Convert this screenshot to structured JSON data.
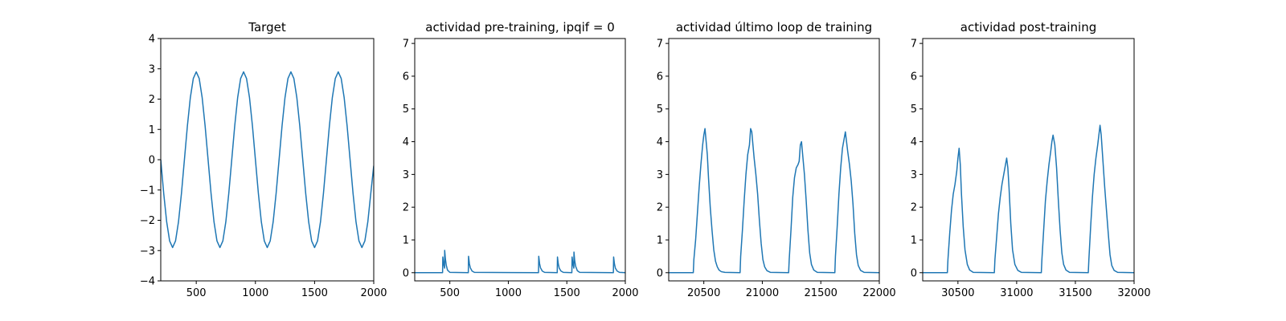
{
  "chart_data": [
    {
      "type": "line",
      "title": "Target",
      "xlabel": "",
      "ylabel": "",
      "xlim": [
        200,
        2000
      ],
      "ylim": [
        -4,
        4
      ],
      "xticks": [
        500,
        1000,
        1500,
        2000
      ],
      "xtick_labels": [
        "500",
        "1000",
        "1500",
        "2000"
      ],
      "yticks": [
        -4,
        -3,
        -2,
        -1,
        0,
        1,
        2,
        3,
        4
      ],
      "ytick_labels": [
        "−4",
        "−3",
        "−2",
        "−1",
        "0",
        "1",
        "2",
        "3",
        "4"
      ],
      "grid": false,
      "color": "#1f77b4",
      "series": [
        {
          "x": [
            200,
            225,
            250,
            275,
            300,
            325,
            350,
            375,
            400,
            425,
            450,
            475,
            500,
            525,
            550,
            575,
            600,
            625,
            650,
            675,
            700,
            725,
            750,
            775,
            800,
            825,
            850,
            875,
            900,
            925,
            950,
            975,
            1000,
            1025,
            1050,
            1075,
            1100,
            1125,
            1150,
            1175,
            1200,
            1225,
            1250,
            1275,
            1300,
            1325,
            1350,
            1375,
            1400,
            1425,
            1450,
            1475,
            1500,
            1525,
            1550,
            1575,
            1600,
            1625,
            1650,
            1675,
            1700,
            1725,
            1750,
            1775,
            1800,
            1825,
            1850,
            1875,
            1900,
            1925,
            1950,
            1975,
            2000
          ],
          "y": [
            0.0,
            -1.11,
            -2.05,
            -2.68,
            -2.9,
            -2.68,
            -2.05,
            -1.11,
            0.0,
            1.11,
            2.05,
            2.68,
            2.9,
            2.68,
            2.05,
            1.11,
            0.0,
            -1.11,
            -2.05,
            -2.68,
            -2.9,
            -2.68,
            -2.05,
            -1.11,
            0.0,
            1.11,
            2.05,
            2.68,
            2.9,
            2.68,
            2.05,
            1.11,
            0.0,
            -1.11,
            -2.05,
            -2.68,
            -2.9,
            -2.68,
            -2.05,
            -1.11,
            0.0,
            1.11,
            2.05,
            2.68,
            2.9,
            2.68,
            2.05,
            1.11,
            0.0,
            -1.11,
            -2.05,
            -2.68,
            -2.9,
            -2.68,
            -2.05,
            -1.11,
            0.0,
            1.11,
            2.05,
            2.68,
            2.9,
            2.68,
            2.05,
            1.11,
            0.0,
            -1.11,
            -2.05,
            -2.68,
            -2.9,
            -2.68,
            -2.05,
            -1.11,
            -0.2
          ]
        }
      ]
    },
    {
      "type": "line",
      "title": "actividad pre-training, ipqif = 0",
      "xlabel": "",
      "ylabel": "",
      "xlim": [
        200,
        2000
      ],
      "ylim": [
        -0.25,
        7.15
      ],
      "xticks": [
        500,
        1000,
        1500,
        2000
      ],
      "xtick_labels": [
        "500",
        "1000",
        "1500",
        "2000"
      ],
      "yticks": [
        0,
        1,
        2,
        3,
        4,
        5,
        6,
        7
      ],
      "ytick_labels": [
        "0",
        "1",
        "2",
        "3",
        "4",
        "5",
        "6",
        "7"
      ],
      "grid": false,
      "color": "#1f77b4",
      "series": [
        {
          "x": [
            200,
            438,
            440,
            447,
            455,
            456,
            462,
            470,
            480,
            500,
            658,
            660,
            667,
            675,
            690,
            710,
            1258,
            1260,
            1267,
            1275,
            1290,
            1310,
            1418,
            1420,
            1427,
            1435,
            1450,
            1470,
            1543,
            1545,
            1552,
            1560,
            1561,
            1567,
            1575,
            1590,
            1610,
            1898,
            1900,
            1907,
            1915,
            1930,
            1950,
            2000
          ],
          "y": [
            0,
            0,
            0.48,
            0.27,
            0.14,
            0.68,
            0.42,
            0.22,
            0.08,
            0.01,
            0,
            0.5,
            0.28,
            0.15,
            0.05,
            0.01,
            0,
            0.5,
            0.28,
            0.15,
            0.05,
            0.01,
            0,
            0.48,
            0.27,
            0.14,
            0.05,
            0.01,
            0,
            0.48,
            0.27,
            0.14,
            0.63,
            0.38,
            0.2,
            0.06,
            0.01,
            0,
            0.48,
            0.27,
            0.14,
            0.05,
            0.01,
            0
          ]
        }
      ]
    },
    {
      "type": "line",
      "title": "actividad último loop de training",
      "xlabel": "",
      "ylabel": "",
      "xlim": [
        20200,
        22000
      ],
      "ylim": [
        -0.25,
        7.15
      ],
      "xticks": [
        20500,
        21000,
        21500,
        22000
      ],
      "xtick_labels": [
        "20500",
        "21000",
        "21500",
        "22000"
      ],
      "yticks": [
        0,
        1,
        2,
        3,
        4,
        5,
        6,
        7
      ],
      "ytick_labels": [
        "0",
        "1",
        "2",
        "3",
        "4",
        "5",
        "6",
        "7"
      ],
      "grid": false,
      "color": "#1f77b4",
      "series": [
        {
          "x": [
            20200,
            20410,
            20415,
            20430,
            20445,
            20460,
            20475,
            20490,
            20500,
            20510,
            20520,
            20530,
            20540,
            20555,
            20570,
            20585,
            20600,
            20615,
            20630,
            20650,
            20680,
            20810,
            20815,
            20830,
            20845,
            20860,
            20875,
            20890,
            20900,
            20910,
            20920,
            20930,
            20945,
            20960,
            20975,
            20990,
            21005,
            21020,
            21040,
            21070,
            21225,
            21230,
            21245,
            21260,
            21275,
            21290,
            21305,
            21315,
            21325,
            21335,
            21345,
            21360,
            21375,
            21390,
            21405,
            21420,
            21440,
            21470,
            21620,
            21625,
            21640,
            21655,
            21670,
            21685,
            21700,
            21710,
            21720,
            21730,
            21745,
            21760,
            21775,
            21790,
            21805,
            21820,
            21840,
            21870,
            22000
          ],
          "y": [
            0,
            0,
            0.4,
            1.0,
            1.8,
            2.6,
            3.3,
            3.9,
            4.2,
            4.4,
            4.0,
            3.6,
            2.9,
            2.0,
            1.3,
            0.7,
            0.35,
            0.18,
            0.08,
            0.03,
            0.01,
            0,
            0.5,
            1.3,
            2.2,
            3.0,
            3.6,
            3.9,
            4.4,
            4.3,
            3.9,
            3.5,
            3.0,
            2.4,
            1.6,
            0.9,
            0.4,
            0.18,
            0.06,
            0.01,
            0,
            0.4,
            1.3,
            2.3,
            2.9,
            3.2,
            3.3,
            3.4,
            3.9,
            4.0,
            3.6,
            3.0,
            2.2,
            1.3,
            0.6,
            0.25,
            0.08,
            0.01,
            0,
            0.5,
            1.4,
            2.4,
            3.2,
            3.8,
            4.1,
            4.3,
            4.0,
            3.7,
            3.3,
            2.8,
            2.1,
            1.2,
            0.55,
            0.22,
            0.07,
            0.01,
            0
          ]
        }
      ]
    },
    {
      "type": "line",
      "title": "actividad post-training",
      "xlabel": "",
      "ylabel": "",
      "xlim": [
        30200,
        32000
      ],
      "ylim": [
        -0.25,
        7.15
      ],
      "xticks": [
        30500,
        31000,
        31500,
        32000
      ],
      "xtick_labels": [
        "30500",
        "31000",
        "31500",
        "32000"
      ],
      "yticks": [
        0,
        1,
        2,
        3,
        4,
        5,
        6,
        7
      ],
      "ytick_labels": [
        "0",
        "1",
        "2",
        "3",
        "4",
        "5",
        "6",
        "7"
      ],
      "grid": false,
      "color": "#1f77b4",
      "series": [
        {
          "x": [
            30200,
            30410,
            30415,
            30430,
            30445,
            30460,
            30475,
            30490,
            30500,
            30510,
            30520,
            30530,
            30545,
            30560,
            30580,
            30600,
            30630,
            30810,
            30815,
            30830,
            30845,
            30860,
            30875,
            30890,
            30905,
            30915,
            30925,
            30935,
            30950,
            30965,
            30985,
            31010,
            31040,
            31210,
            31215,
            31230,
            31245,
            31260,
            31275,
            31290,
            31300,
            31310,
            31325,
            31340,
            31355,
            31370,
            31385,
            31400,
            31420,
            31450,
            31610,
            31615,
            31630,
            31645,
            31660,
            31675,
            31690,
            31700,
            31710,
            31720,
            31735,
            31750,
            31765,
            31780,
            31795,
            31810,
            31830,
            31860,
            32000
          ],
          "y": [
            0,
            0,
            0.4,
            1.2,
            1.9,
            2.4,
            2.7,
            3.1,
            3.5,
            3.8,
            3.3,
            2.4,
            1.4,
            0.7,
            0.25,
            0.08,
            0.01,
            0,
            0.4,
            1.1,
            1.8,
            2.3,
            2.7,
            3.0,
            3.3,
            3.5,
            3.2,
            2.6,
            1.5,
            0.7,
            0.25,
            0.07,
            0.01,
            0,
            0.4,
            1.3,
            2.2,
            2.8,
            3.3,
            3.7,
            4.0,
            4.2,
            3.9,
            3.2,
            2.2,
            1.3,
            0.6,
            0.25,
            0.08,
            0.01,
            0,
            0.4,
            1.4,
            2.3,
            3.0,
            3.5,
            3.9,
            4.2,
            4.5,
            4.2,
            3.4,
            2.6,
            1.9,
            1.2,
            0.55,
            0.22,
            0.07,
            0.01,
            0
          ]
        }
      ]
    }
  ]
}
